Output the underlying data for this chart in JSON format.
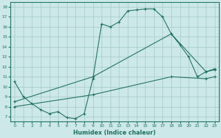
{
  "xlabel": "Humidex (Indice chaleur)",
  "bg_color": "#cce8e8",
  "grid_color": "#aacccc",
  "line_color": "#1a6e60",
  "xlim": [
    -0.5,
    23.5
  ],
  "ylim": [
    6.5,
    18.5
  ],
  "xticks": [
    0,
    1,
    2,
    3,
    4,
    5,
    6,
    7,
    8,
    9,
    10,
    11,
    12,
    13,
    14,
    15,
    16,
    17,
    18,
    19,
    20,
    21,
    22,
    23
  ],
  "yticks": [
    7,
    8,
    9,
    10,
    11,
    12,
    13,
    14,
    15,
    16,
    17,
    18
  ],
  "curve1_x": [
    0,
    1,
    2,
    3,
    4,
    5,
    6,
    7,
    8,
    9,
    10,
    11,
    12,
    13,
    14,
    15,
    16,
    17,
    18,
    19,
    20,
    21,
    22,
    23
  ],
  "curve1_y": [
    10.5,
    9.0,
    8.3,
    7.7,
    7.3,
    7.5,
    6.9,
    6.8,
    7.3,
    10.8,
    16.3,
    16.0,
    16.5,
    17.6,
    17.7,
    17.8,
    17.8,
    17.0,
    15.3,
    14.2,
    13.0,
    11.0,
    11.5,
    11.8
  ],
  "curve2_x": [
    0,
    9,
    18,
    22,
    23
  ],
  "curve2_y": [
    8.5,
    11.0,
    15.3,
    11.5,
    11.7
  ],
  "curve3_x": [
    0,
    9,
    18,
    22,
    23
  ],
  "curve3_y": [
    8.0,
    9.2,
    11.0,
    10.8,
    11.0
  ]
}
